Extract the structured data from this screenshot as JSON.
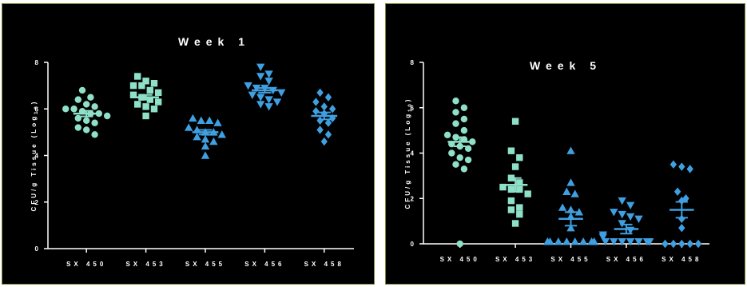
{
  "colors": {
    "background": "#000000",
    "axis": "#ffffff",
    "border": "#7d8a3c",
    "SX 450": "#8fe0c8",
    "SX 453": "#8fe0c8",
    "SX 455": "#3f9fe0",
    "SX 456": "#3f9fe0",
    "SX 458": "#3f9fe0"
  },
  "chart_data": [
    {
      "type": "scatter",
      "title": "Week 1",
      "ylabel": "CFU/g Tissue (Log10)",
      "ylabel_main": "CFU/g Tissue (Log",
      "ylabel_sub": "10",
      "ylabel_close": ")",
      "ylim": [
        0,
        8
      ],
      "yticks": [
        "0",
        "2",
        "4",
        "6",
        "8"
      ],
      "grid": false,
      "categories": [
        "SX 450",
        "SX 453",
        "SX 455",
        "SX 456",
        "SX 458"
      ],
      "series": [
        {
          "category": "SX 450",
          "marker": "circle",
          "mean": 5.8,
          "sem": 0.12,
          "values": [
            6.8,
            6.5,
            6.4,
            6.2,
            6.1,
            6.0,
            6.0,
            5.9,
            5.8,
            5.8,
            5.7,
            5.6,
            5.5,
            5.4,
            5.2,
            5.1,
            4.9
          ]
        },
        {
          "category": "SX 453",
          "marker": "square",
          "mean": 6.5,
          "sem": 0.1,
          "values": [
            7.4,
            7.2,
            7.1,
            7.0,
            7.0,
            6.8,
            6.7,
            6.6,
            6.5,
            6.4,
            6.3,
            6.2,
            6.1,
            6.0,
            5.7
          ]
        },
        {
          "category": "SX 455",
          "marker": "triangle-up",
          "mean": 5.0,
          "sem": 0.1,
          "values": [
            5.6,
            5.5,
            5.5,
            5.4,
            5.2,
            5.1,
            5.0,
            5.0,
            4.9,
            4.8,
            4.7,
            4.6,
            4.4,
            4.0
          ]
        },
        {
          "category": "SX 456",
          "marker": "triangle-down",
          "mean": 6.8,
          "sem": 0.1,
          "values": [
            7.8,
            7.5,
            7.4,
            7.2,
            7.0,
            6.9,
            6.9,
            6.8,
            6.7,
            6.6,
            6.5,
            6.4,
            6.3,
            6.2,
            6.1
          ]
        },
        {
          "category": "SX 458",
          "marker": "diamond",
          "mean": 5.7,
          "sem": 0.15,
          "values": [
            6.7,
            6.5,
            6.3,
            6.1,
            6.0,
            5.9,
            5.8,
            5.6,
            5.5,
            5.4,
            5.1,
            4.9,
            4.6
          ]
        }
      ]
    },
    {
      "type": "scatter",
      "title": "Week 5",
      "ylabel": "CFU/g Tissue (Log10)",
      "ylabel_main": "CFU/g Tissue (Log",
      "ylabel_sub": "10",
      "ylabel_close": ")",
      "ylim": [
        0,
        8
      ],
      "yticks": [
        "0",
        "2",
        "4",
        "6",
        "8"
      ],
      "grid": false,
      "categories": [
        "SX 450",
        "SX 453",
        "SX 455",
        "SX 456",
        "SX 458"
      ],
      "series": [
        {
          "category": "SX 450",
          "marker": "circle",
          "mean": 4.5,
          "sem": 0.2,
          "values": [
            6.3,
            6.0,
            5.8,
            5.5,
            5.3,
            5.0,
            4.8,
            4.7,
            4.6,
            4.5,
            4.4,
            4.3,
            4.2,
            4.0,
            3.8,
            3.7,
            3.5,
            3.3,
            0.0
          ]
        },
        {
          "category": "SX 453",
          "marker": "square",
          "mean": 2.6,
          "sem": 0.3,
          "values": [
            5.4,
            4.1,
            3.8,
            3.4,
            2.9,
            2.7,
            2.5,
            2.4,
            2.4,
            2.2,
            1.9,
            1.6,
            1.5,
            1.3,
            0.9
          ]
        },
        {
          "category": "SX 455",
          "marker": "triangle-up",
          "mean": 1.1,
          "sem": 0.3,
          "values": [
            4.1,
            2.7,
            2.3,
            2.2,
            1.6,
            1.5,
            1.4,
            1.2,
            0.7,
            0.1,
            0.1,
            0.1,
            0.1,
            0.1,
            0.1,
            0.1,
            0.1,
            0.1,
            0.1
          ]
        },
        {
          "category": "SX 456",
          "marker": "triangle-down",
          "mean": 0.65,
          "sem": 0.2,
          "values": [
            1.9,
            1.7,
            1.4,
            1.3,
            1.2,
            1.1,
            0.9,
            0.6,
            0.4,
            0.3,
            0.1,
            0.1,
            0.1,
            0.1,
            0.1,
            0.1,
            0.1,
            0.1
          ]
        },
        {
          "category": "SX 458",
          "marker": "diamond",
          "mean": 1.5,
          "sem": 0.35,
          "values": [
            3.5,
            3.4,
            3.3,
            2.3,
            2.0,
            1.9,
            1.1,
            0.7,
            0.0,
            0.0,
            0.0,
            0.0,
            0.0
          ]
        }
      ]
    }
  ]
}
